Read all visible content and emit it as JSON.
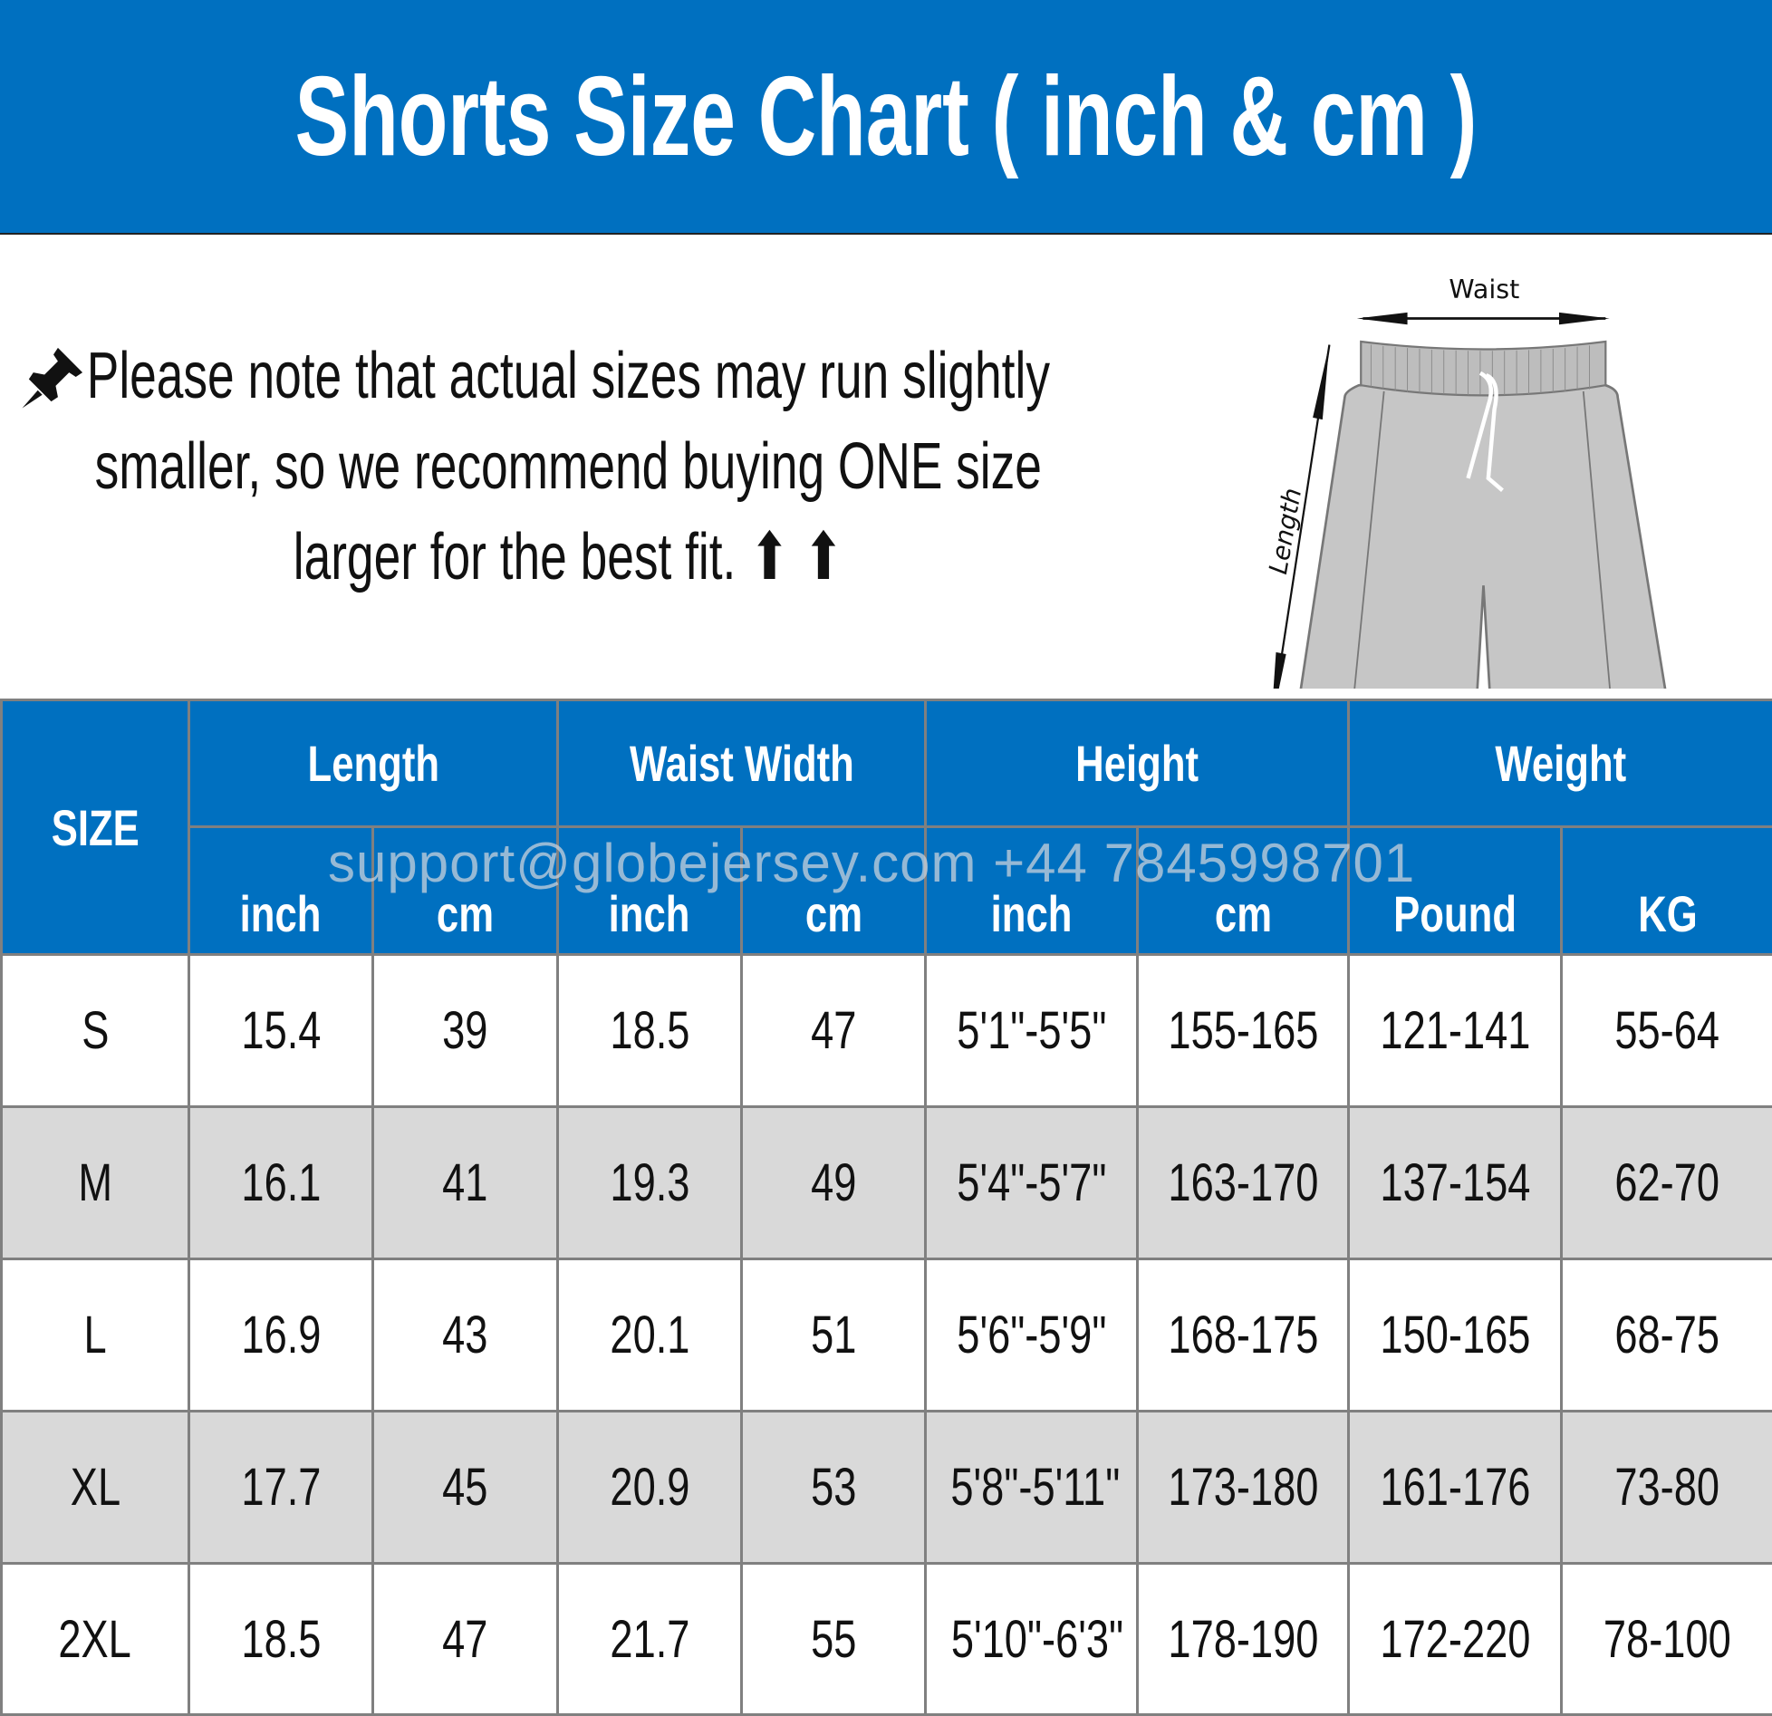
{
  "title": "Shorts Size Chart ( inch & cm )",
  "note": {
    "icon": "pushpin-icon",
    "lines": [
      "Please note that actual sizes may run slightly",
      "smaller, so we recommend buying ONE size",
      "larger for the best fit. ⬆ ⬆"
    ]
  },
  "illustration": {
    "waist_label": "Waist",
    "length_label": "Length"
  },
  "watermark": "support@globejersey.com   +44 7845998701",
  "table": {
    "size_header": "SIZE",
    "groups": [
      "Length",
      "Waist Width",
      "Height",
      "Weight"
    ],
    "units": [
      "inch",
      "cm",
      "inch",
      "cm",
      "inch",
      "cm",
      "Pound",
      "KG"
    ],
    "rows": [
      [
        "S",
        "15.4",
        "39",
        "18.5",
        "47",
        "5'1\"-5'5\"",
        "155-165",
        "121-141",
        "55-64"
      ],
      [
        "M",
        "16.1",
        "41",
        "19.3",
        "49",
        "5'4\"-5'7\"",
        "163-170",
        "137-154",
        "62-70"
      ],
      [
        "L",
        "16.9",
        "43",
        "20.1",
        "51",
        "5'6\"-5'9\"",
        "168-175",
        "150-165",
        "68-75"
      ],
      [
        "XL",
        "17.7",
        "45",
        "20.9",
        "53",
        "5'8\"-5'11\"",
        "173-180",
        "161-176",
        "73-80"
      ],
      [
        "2XL",
        "18.5",
        "47",
        "21.7",
        "55",
        "5'10\"-6'3\"",
        "178-190",
        "172-220",
        "78-100"
      ]
    ]
  },
  "colors": {
    "header_blue": "#0070c0",
    "alt_row": "#d9d9d9",
    "border": "#808080"
  }
}
